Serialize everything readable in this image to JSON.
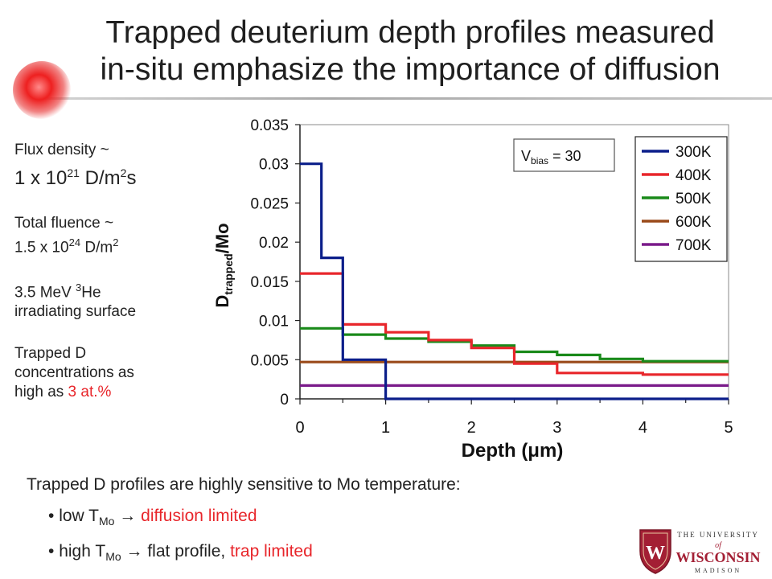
{
  "slide": {
    "title_line1": "Trapped deuterium depth profiles measured",
    "title_line2": "in-situ emphasize the importance of diffusion"
  },
  "left": {
    "flux_label": "Flux density ~",
    "flux_value": "1 x 10",
    "flux_exp": "21",
    "flux_unit": " D/m",
    "flux_unit_exp": "2",
    "flux_unit_tail": "s",
    "fluence_label": "Total fluence ~",
    "fluence_value": "1.5 x 10",
    "fluence_exp": "24",
    "fluence_unit": " D/m",
    "fluence_unit_exp": "2",
    "beam_line1_pre": "3.5 MeV ",
    "beam_line1_sup": "3",
    "beam_line1_post": "He",
    "beam_line2": "irradiating surface",
    "trapped_line1": "Trapped D",
    "trapped_line2": "concentrations as",
    "trapped_line3_pre": "high as ",
    "trapped_line3_red": "3 at.%"
  },
  "bottom": {
    "line1": "Trapped D profiles are highly sensitive to Mo temperature:",
    "bullet1_pre": "low T",
    "bullet1_sub": "Mo",
    "bullet1_arrow": "→",
    "bullet1_red": "diffusion limited",
    "bullet2_pre": "high T",
    "bullet2_sub": "Mo",
    "bullet2_arrow": "→",
    "bullet2_mid": "flat profile, ",
    "bullet2_red": "trap limited"
  },
  "logo": {
    "line1": "THE UNIVERSITY",
    "line2": "of",
    "line3": "WISCONSIN",
    "line4": "MADISON",
    "crest_letter": "W"
  },
  "chart_data": {
    "type": "line",
    "xlabel": "Depth (μm)",
    "ylabel": "D",
    "ylabel_sub": "trapped",
    "ylabel_tail": "/Mo",
    "xlim": [
      0,
      5
    ],
    "ylim": [
      0,
      0.035
    ],
    "x_ticks": [
      "0",
      "1",
      "2",
      "3",
      "4",
      "5"
    ],
    "y_ticks": [
      "0",
      "0.005",
      "0.01",
      "0.015",
      "0.02",
      "0.025",
      "0.03",
      "0.035"
    ],
    "annotation": "V",
    "annotation_sub": "bias",
    "annotation_tail": " = 30",
    "legend_position": "top-right",
    "series": [
      {
        "name": "300K",
        "color": "#0b1e8a",
        "x": [
          0,
          0.25,
          0.25,
          0.5,
          0.5,
          1.0,
          1.0,
          5.0
        ],
        "y": [
          0.03,
          0.03,
          0.018,
          0.018,
          0.005,
          0.005,
          0.0,
          0.0
        ]
      },
      {
        "name": "400K",
        "color": "#e8262b",
        "x": [
          0,
          0.5,
          0.5,
          1.0,
          1.0,
          1.5,
          1.5,
          2.0,
          2.0,
          2.5,
          2.5,
          3.0,
          3.0,
          4.0,
          4.0,
          5.0
        ],
        "y": [
          0.016,
          0.016,
          0.0095,
          0.0095,
          0.0085,
          0.0085,
          0.0075,
          0.0075,
          0.0065,
          0.0065,
          0.0045,
          0.0045,
          0.0033,
          0.0033,
          0.0031,
          0.0031
        ]
      },
      {
        "name": "500K",
        "color": "#1a8a1a",
        "x": [
          0,
          0.5,
          0.5,
          1.0,
          1.0,
          1.5,
          1.5,
          2.0,
          2.0,
          2.5,
          2.5,
          3.0,
          3.0,
          3.5,
          3.5,
          4.0,
          4.0,
          5.0
        ],
        "y": [
          0.009,
          0.009,
          0.0082,
          0.0082,
          0.0077,
          0.0077,
          0.0073,
          0.0073,
          0.0068,
          0.0068,
          0.006,
          0.006,
          0.0056,
          0.0056,
          0.0051,
          0.0051,
          0.0048,
          0.0048
        ]
      },
      {
        "name": "600K",
        "color": "#9a4a1a",
        "x": [
          0,
          5.0
        ],
        "y": [
          0.0047,
          0.0047
        ]
      },
      {
        "name": "700K",
        "color": "#7a1a8a",
        "x": [
          0,
          5.0
        ],
        "y": [
          0.0017,
          0.0017
        ]
      }
    ]
  }
}
